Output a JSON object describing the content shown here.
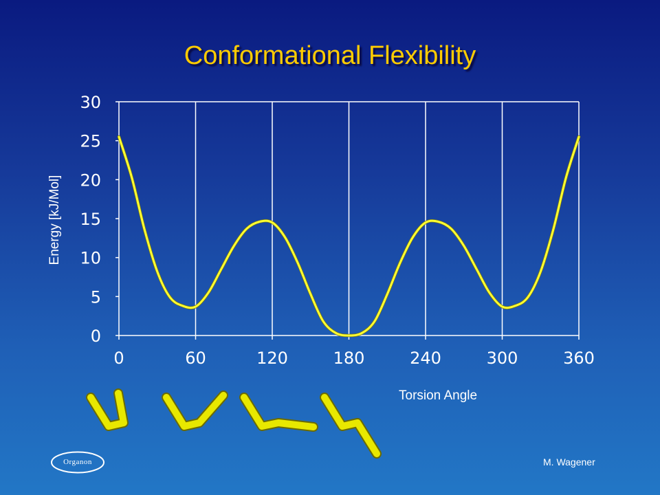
{
  "page": {
    "title": "Conformational Flexibility",
    "author": "M. Wagener",
    "logo_text": "Organon"
  },
  "colors": {
    "title": "#ffcc00",
    "curve": "#ffff33",
    "grid": "#ffffff",
    "text": "#ffffff"
  },
  "chart_data": {
    "type": "line",
    "title": "Conformational Flexibility",
    "xlabel": "Torsion Angle",
    "ylabel": "Energy [kJ/Mol]",
    "xlim": [
      0,
      360
    ],
    "ylim": [
      0,
      30
    ],
    "xticks": [
      0,
      60,
      120,
      180,
      240,
      300,
      360
    ],
    "yticks": [
      0,
      5,
      10,
      15,
      20,
      25,
      30
    ],
    "grid": "vertical",
    "legend": "none",
    "series": [
      {
        "x": [
          0,
          10,
          20,
          30,
          40,
          50,
          60,
          70,
          80,
          90,
          100,
          110,
          120,
          130,
          140,
          150,
          160,
          170,
          180,
          190,
          200,
          210,
          220,
          230,
          240,
          250,
          260,
          270,
          280,
          290,
          300,
          310,
          320,
          330,
          340,
          350,
          360
        ],
        "values": [
          25.5,
          20.3,
          13.6,
          8.2,
          4.9,
          3.8,
          3.7,
          5.5,
          8.5,
          11.5,
          13.7,
          14.6,
          14.5,
          12.6,
          9.3,
          5.3,
          1.8,
          0.3,
          0.0,
          0.3,
          1.8,
          5.3,
          9.3,
          12.6,
          14.5,
          14.6,
          13.7,
          11.5,
          8.5,
          5.5,
          3.7,
          3.8,
          4.9,
          8.2,
          13.6,
          20.3,
          25.5
        ]
      }
    ]
  }
}
